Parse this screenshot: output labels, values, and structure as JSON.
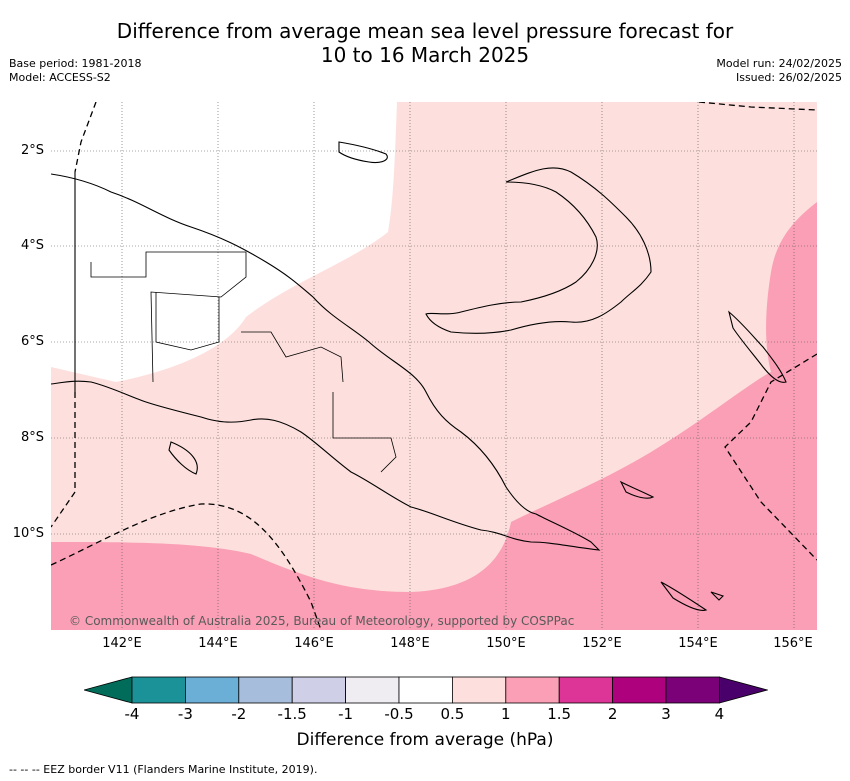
{
  "title_line1": "Difference from average mean sea level pressure forecast for",
  "title_line2": "10 to 16 March 2025",
  "base_period": "Base period: 1981-2018",
  "model": "Model: ACCESS-S2",
  "model_run": "Model run: 24/02/2025",
  "issued": "Issued: 26/02/2025",
  "lat_ticks": [
    "2°S",
    "4°S",
    "6°S",
    "8°S",
    "10°S"
  ],
  "lon_ticks": [
    "142°E",
    "144°E",
    "146°E",
    "148°E",
    "150°E",
    "152°E",
    "154°E",
    "156°E"
  ],
  "copyright": "© Commonwealth of Australia 2025, Bureau of Meteorology, supported by COSPPac",
  "colorbar": {
    "title": "Difference from average (hPa)",
    "labels": [
      "-4",
      "-3",
      "-2",
      "-1.5",
      "-1",
      "-0.5",
      "0.5",
      "1",
      "1.5",
      "2",
      "3",
      "4"
    ],
    "colors": [
      "#1a9298",
      "#6baed6",
      "#a6bddb",
      "#cfd0e8",
      "#efecf2",
      "#ffffff",
      "#fde0dd",
      "#fa9fb5",
      "#dd3497",
      "#ae017e",
      "#7a0177"
    ],
    "under_color": "#016c59",
    "over_color": "#49006a"
  },
  "footer": "--  --  -- EEZ border V11 (Flanders Marine Institute, 2019).",
  "colors": {
    "zone_white": "#ffffff",
    "zone_light_pink": "#fde0dd",
    "zone_pink": "#fa9fb5",
    "land_outline": "#000000",
    "grid": "#555555"
  }
}
